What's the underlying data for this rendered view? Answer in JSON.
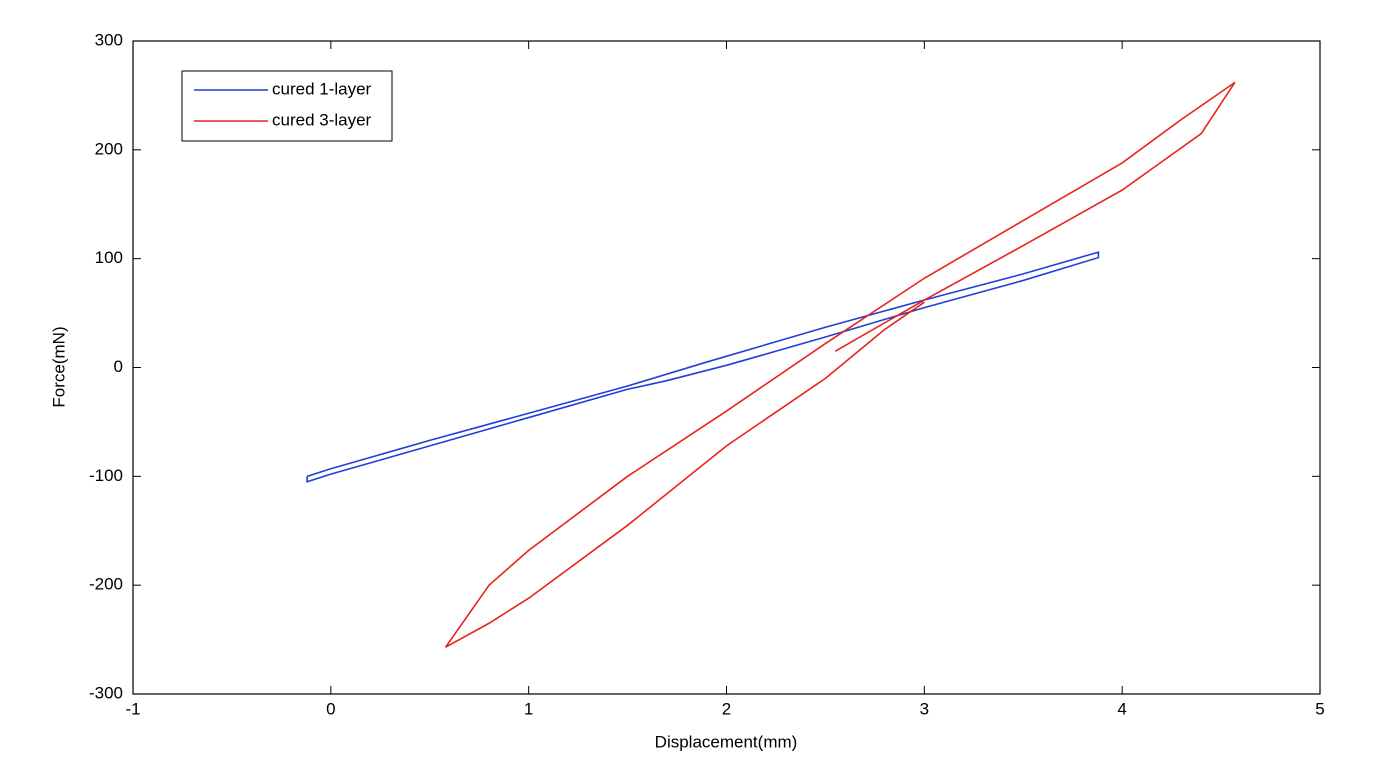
{
  "chart_data": {
    "type": "line",
    "xlabel": "Displacement(mm)",
    "ylabel": "Force(mN)",
    "xlim": [
      -1,
      5
    ],
    "xticks": [
      -1,
      0,
      1,
      2,
      3,
      4,
      5
    ],
    "ylim": [
      -300,
      300
    ],
    "yticks": [
      -300,
      -200,
      -100,
      0,
      100,
      200,
      300
    ],
    "legend": "upper left",
    "series": [
      {
        "name": "cured 1-layer",
        "color": "#1f3fd8",
        "x": [
          -0.12,
          0,
          0.5,
          1,
          1.5,
          1.9,
          2.5,
          3,
          3.5,
          3.88,
          3.88,
          3.5,
          3,
          2.5,
          2,
          1.7,
          1.5,
          1,
          0.5,
          0,
          -0.12,
          -0.12
        ],
        "values": [
          -100,
          -93,
          -67,
          -42,
          -17,
          5,
          37,
          62,
          86,
          106,
          101,
          80,
          55,
          28,
          2,
          -12,
          -20,
          -46,
          -72,
          -98,
          -105,
          -100
        ]
      },
      {
        "name": "cured 3-layer",
        "color": "#e8231c",
        "x": [
          2.55,
          3,
          3.5,
          4,
          4.4,
          4.57,
          4.3,
          4,
          3.5,
          3,
          2.5,
          2,
          1.5,
          1,
          0.8,
          0.58,
          0.8,
          1,
          1.5,
          2,
          2.5,
          2.8,
          3
        ],
        "values": [
          15,
          62,
          112,
          163,
          215,
          262,
          228,
          188,
          135,
          82,
          22,
          -40,
          -100,
          -168,
          -200,
          -257,
          -235,
          -212,
          -145,
          -72,
          -10,
          35,
          60
        ]
      }
    ]
  }
}
